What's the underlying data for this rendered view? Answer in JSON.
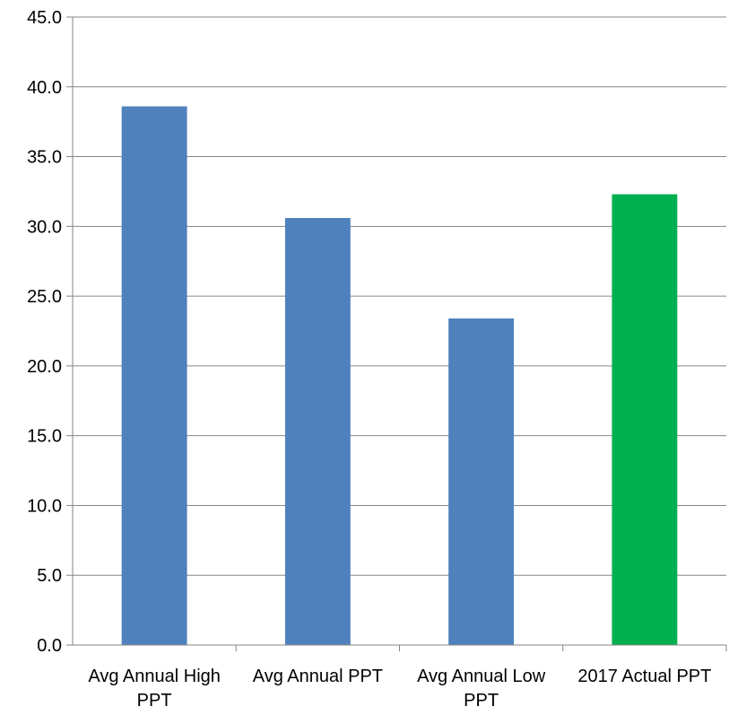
{
  "chart_data": {
    "type": "bar",
    "title": "",
    "xlabel": "",
    "ylabel": "",
    "categories": [
      [
        "Avg Annual High",
        "PPT"
      ],
      [
        "Avg Annual PPT"
      ],
      [
        "Avg Annual Low",
        "PPT"
      ],
      [
        "2017 Actual PPT"
      ]
    ],
    "values": [
      38.6,
      30.6,
      23.4,
      32.3
    ],
    "colors": [
      "#4f81bd",
      "#4f81bd",
      "#4f81bd",
      "#00b050"
    ],
    "ylim": [
      0,
      45
    ],
    "ytick_step": 5,
    "ytick_labels": [
      "0.0",
      "5.0",
      "10.0",
      "15.0",
      "20.0",
      "25.0",
      "30.0",
      "35.0",
      "40.0",
      "45.0"
    ],
    "grid": true,
    "legend": "none"
  }
}
